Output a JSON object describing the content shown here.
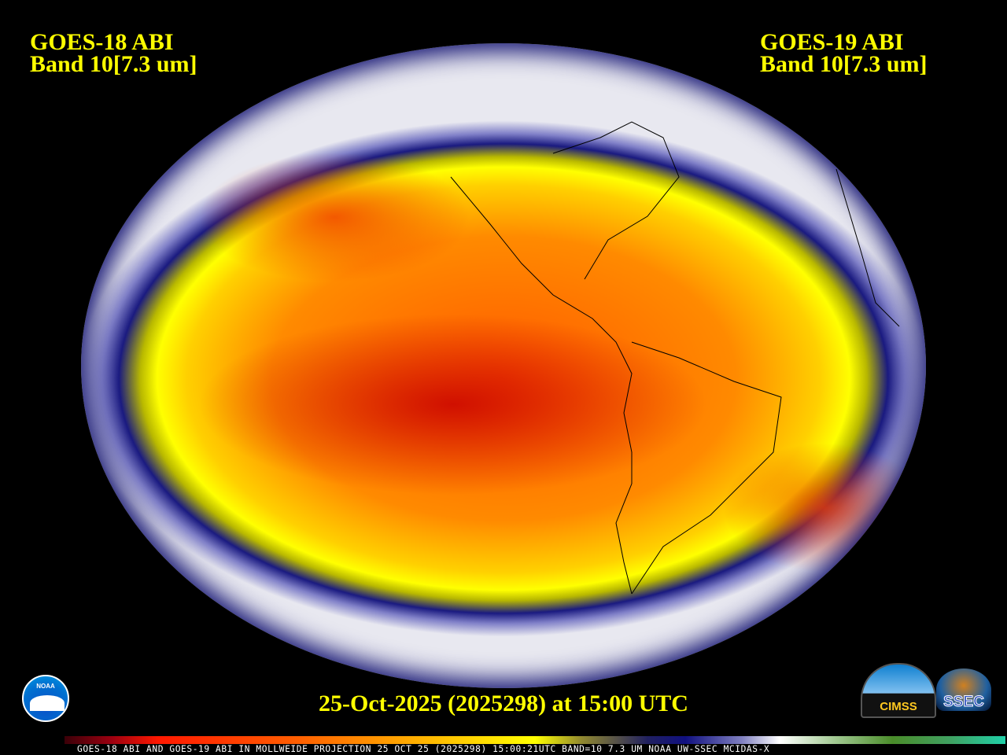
{
  "header": {
    "left": {
      "satellite": "GOES-18 ABI",
      "band": "Band 10[7.3 um]"
    },
    "right": {
      "satellite": "GOES-19 ABI",
      "band": "Band 10[7.3 um]"
    }
  },
  "timestamp": "25-Oct-2025 (2025298) at 15:00 UTC",
  "caption": "GOES-18 ABI AND GOES-19 ABI IN MOLLWEIDE PROJECTION 25 OCT 25 (2025298) 15:00:21UTC BAND=10 7.3 UM NOAA UW-SSEC MCIDAS-X",
  "projection": "Mollweide",
  "colorbar": {
    "colors": [
      "#3a0008",
      "#ff1800",
      "#ff6000",
      "#ffa000",
      "#ffff00",
      "#101080",
      "#ffffff",
      "#4a8c2a",
      "#20d0a8"
    ]
  },
  "logos": {
    "noaa": "NOAA",
    "cimss": "CIMSS",
    "ssec": "SSEC"
  },
  "text_color": "#ffff00"
}
